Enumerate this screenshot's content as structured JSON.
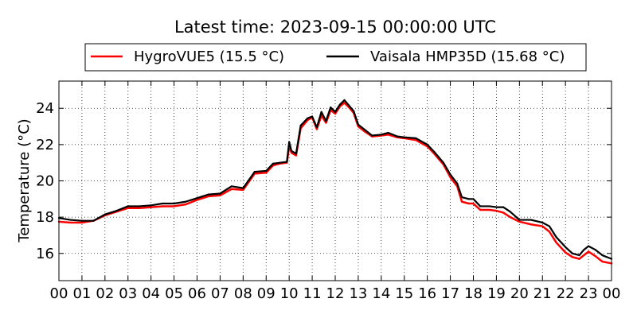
{
  "chart_data": {
    "type": "line",
    "title": "Latest time: 2023-09-15 00:00:00 UTC",
    "xlabel": "",
    "ylabel": "Temperature (°C)",
    "xlim": [
      0,
      24
    ],
    "ylim": [
      14.5,
      25.5
    ],
    "x_tick_values": [
      0,
      1,
      2,
      3,
      4,
      5,
      6,
      7,
      8,
      9,
      10,
      11,
      12,
      13,
      14,
      15,
      16,
      17,
      18,
      19,
      20,
      21,
      22,
      23,
      24
    ],
    "x_tick_labels": [
      "00",
      "01",
      "02",
      "03",
      "04",
      "05",
      "06",
      "07",
      "08",
      "09",
      "10",
      "11",
      "12",
      "13",
      "14",
      "15",
      "16",
      "17",
      "18",
      "19",
      "20",
      "21",
      "22",
      "23",
      "00"
    ],
    "y_tick_values": [
      16,
      18,
      20,
      22,
      24
    ],
    "y_tick_labels": [
      "16",
      "18",
      "20",
      "22",
      "24"
    ],
    "grid": true,
    "legend": {
      "placement": "top",
      "entries": [
        {
          "label": "HygroVUE5 (15.5 °C)",
          "color": "#ff0000"
        },
        {
          "label": "Vaisala HMP35D (15.68 °C)",
          "color": "#000000"
        }
      ]
    },
    "series": [
      {
        "name": "HygroVUE5 (15.5 °C)",
        "color": "#ff0000",
        "points": [
          [
            0.0,
            17.75
          ],
          [
            0.5,
            17.7
          ],
          [
            1.0,
            17.7
          ],
          [
            1.5,
            17.8
          ],
          [
            2.0,
            18.1
          ],
          [
            2.5,
            18.3
          ],
          [
            3.0,
            18.5
          ],
          [
            3.5,
            18.5
          ],
          [
            4.0,
            18.55
          ],
          [
            4.5,
            18.6
          ],
          [
            5.0,
            18.6
          ],
          [
            5.5,
            18.7
          ],
          [
            6.0,
            18.95
          ],
          [
            6.5,
            19.15
          ],
          [
            7.0,
            19.2
          ],
          [
            7.5,
            19.55
          ],
          [
            8.0,
            19.5
          ],
          [
            8.5,
            20.4
          ],
          [
            9.0,
            20.45
          ],
          [
            9.3,
            20.85
          ],
          [
            9.6,
            20.95
          ],
          [
            9.9,
            21.0
          ],
          [
            10.0,
            21.9
          ],
          [
            10.1,
            21.55
          ],
          [
            10.3,
            21.4
          ],
          [
            10.5,
            22.9
          ],
          [
            10.8,
            23.35
          ],
          [
            11.0,
            23.5
          ],
          [
            11.2,
            22.85
          ],
          [
            11.4,
            23.6
          ],
          [
            11.6,
            23.2
          ],
          [
            11.8,
            23.9
          ],
          [
            12.0,
            23.7
          ],
          [
            12.2,
            24.1
          ],
          [
            12.4,
            24.3
          ],
          [
            12.6,
            24.05
          ],
          [
            12.8,
            23.75
          ],
          [
            13.0,
            23.0
          ],
          [
            13.3,
            22.7
          ],
          [
            13.6,
            22.45
          ],
          [
            14.0,
            22.5
          ],
          [
            14.3,
            22.55
          ],
          [
            14.7,
            22.4
          ],
          [
            15.0,
            22.35
          ],
          [
            15.5,
            22.25
          ],
          [
            16.0,
            21.9
          ],
          [
            16.3,
            21.5
          ],
          [
            16.7,
            20.9
          ],
          [
            17.0,
            20.2
          ],
          [
            17.3,
            19.7
          ],
          [
            17.5,
            18.85
          ],
          [
            17.8,
            18.75
          ],
          [
            18.0,
            18.75
          ],
          [
            18.3,
            18.4
          ],
          [
            18.7,
            18.4
          ],
          [
            19.0,
            18.35
          ],
          [
            19.3,
            18.25
          ],
          [
            19.6,
            18.0
          ],
          [
            20.0,
            17.75
          ],
          [
            20.5,
            17.6
          ],
          [
            21.0,
            17.5
          ],
          [
            21.3,
            17.2
          ],
          [
            21.6,
            16.6
          ],
          [
            22.0,
            16.05
          ],
          [
            22.3,
            15.8
          ],
          [
            22.6,
            15.7
          ],
          [
            22.8,
            15.9
          ],
          [
            23.0,
            16.1
          ],
          [
            23.3,
            15.85
          ],
          [
            23.6,
            15.55
          ],
          [
            24.0,
            15.45
          ]
        ]
      },
      {
        "name": "Vaisala HMP35D (15.68 °C)",
        "color": "#000000",
        "points": [
          [
            0.0,
            17.95
          ],
          [
            0.5,
            17.85
          ],
          [
            1.0,
            17.8
          ],
          [
            1.5,
            17.8
          ],
          [
            2.0,
            18.15
          ],
          [
            2.5,
            18.35
          ],
          [
            3.0,
            18.6
          ],
          [
            3.5,
            18.6
          ],
          [
            4.0,
            18.65
          ],
          [
            4.5,
            18.75
          ],
          [
            5.0,
            18.75
          ],
          [
            5.5,
            18.85
          ],
          [
            6.0,
            19.05
          ],
          [
            6.5,
            19.25
          ],
          [
            7.0,
            19.3
          ],
          [
            7.5,
            19.7
          ],
          [
            8.0,
            19.6
          ],
          [
            8.5,
            20.5
          ],
          [
            9.0,
            20.55
          ],
          [
            9.3,
            20.95
          ],
          [
            9.6,
            21.0
          ],
          [
            9.9,
            21.05
          ],
          [
            10.0,
            22.15
          ],
          [
            10.1,
            21.65
          ],
          [
            10.3,
            21.5
          ],
          [
            10.5,
            23.05
          ],
          [
            10.8,
            23.45
          ],
          [
            11.0,
            23.55
          ],
          [
            11.2,
            22.95
          ],
          [
            11.4,
            23.8
          ],
          [
            11.6,
            23.3
          ],
          [
            11.8,
            24.05
          ],
          [
            12.0,
            23.8
          ],
          [
            12.2,
            24.2
          ],
          [
            12.4,
            24.45
          ],
          [
            12.6,
            24.15
          ],
          [
            12.8,
            23.85
          ],
          [
            13.0,
            23.1
          ],
          [
            13.3,
            22.8
          ],
          [
            13.6,
            22.5
          ],
          [
            14.0,
            22.55
          ],
          [
            14.3,
            22.65
          ],
          [
            14.7,
            22.45
          ],
          [
            15.0,
            22.4
          ],
          [
            15.5,
            22.35
          ],
          [
            16.0,
            22.0
          ],
          [
            16.3,
            21.6
          ],
          [
            16.7,
            21.0
          ],
          [
            17.0,
            20.35
          ],
          [
            17.3,
            19.85
          ],
          [
            17.5,
            19.1
          ],
          [
            17.8,
            19.0
          ],
          [
            18.0,
            19.0
          ],
          [
            18.3,
            18.6
          ],
          [
            18.7,
            18.6
          ],
          [
            19.0,
            18.55
          ],
          [
            19.3,
            18.55
          ],
          [
            19.6,
            18.3
          ],
          [
            20.0,
            17.85
          ],
          [
            20.5,
            17.85
          ],
          [
            21.0,
            17.7
          ],
          [
            21.3,
            17.5
          ],
          [
            21.6,
            16.9
          ],
          [
            22.0,
            16.35
          ],
          [
            22.3,
            16.0
          ],
          [
            22.6,
            15.9
          ],
          [
            22.8,
            16.2
          ],
          [
            23.0,
            16.4
          ],
          [
            23.3,
            16.2
          ],
          [
            23.6,
            15.9
          ],
          [
            24.0,
            15.7
          ]
        ]
      }
    ]
  }
}
